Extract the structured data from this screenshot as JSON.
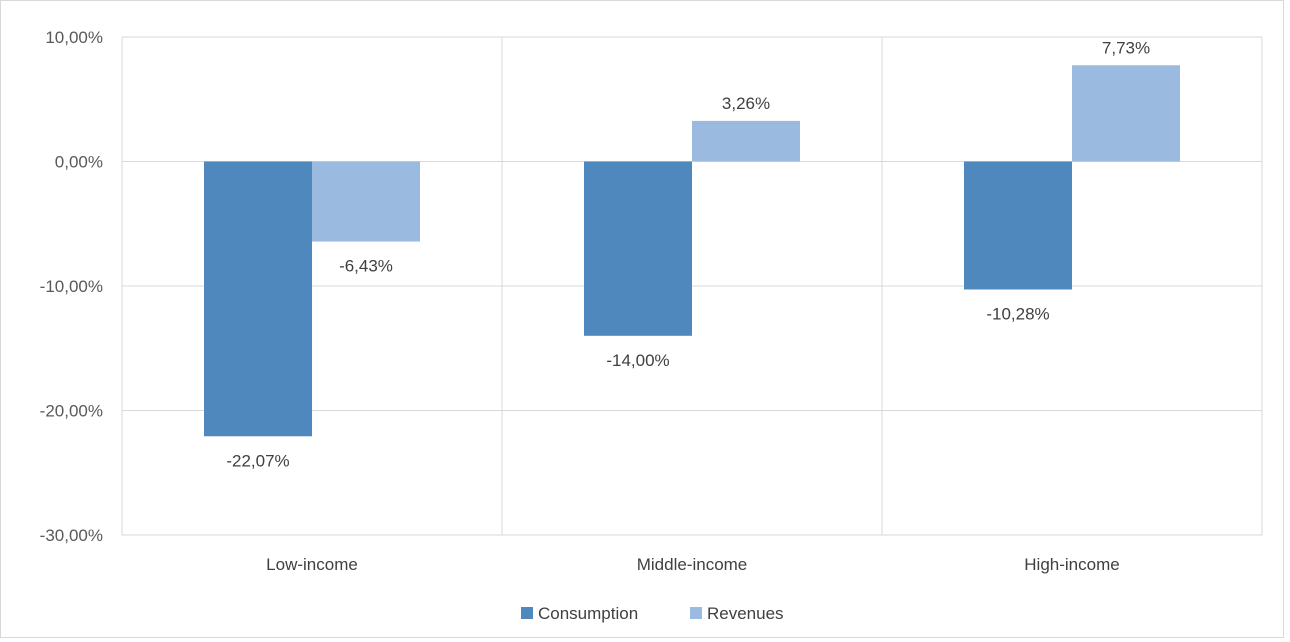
{
  "chart_data": {
    "type": "bar",
    "categories": [
      "Low-income",
      "Middle-income",
      "High-income"
    ],
    "series": [
      {
        "name": "Consumption",
        "values": [
          -22.07,
          -14.0,
          -10.28
        ],
        "labels": [
          "-22,07%",
          "-14,00%",
          "-10,28%"
        ],
        "color": "#4e88bd"
      },
      {
        "name": "Revenues",
        "values": [
          -6.43,
          3.26,
          7.73
        ],
        "labels": [
          "-6,43%",
          "3,26%",
          "7,73%"
        ],
        "color": "#9bbae0"
      }
    ],
    "y_ticks": [
      {
        "value": 10,
        "label": "10,00%"
      },
      {
        "value": 0,
        "label": "0,00%"
      },
      {
        "value": -10,
        "label": "-10,00%"
      },
      {
        "value": -20,
        "label": "-20,00%"
      },
      {
        "value": -30,
        "label": "-30,00%"
      }
    ],
    "ylim": [
      -30,
      10
    ],
    "title": "",
    "xlabel": "",
    "ylabel": "",
    "grid": true,
    "legend_position": "bottom"
  }
}
